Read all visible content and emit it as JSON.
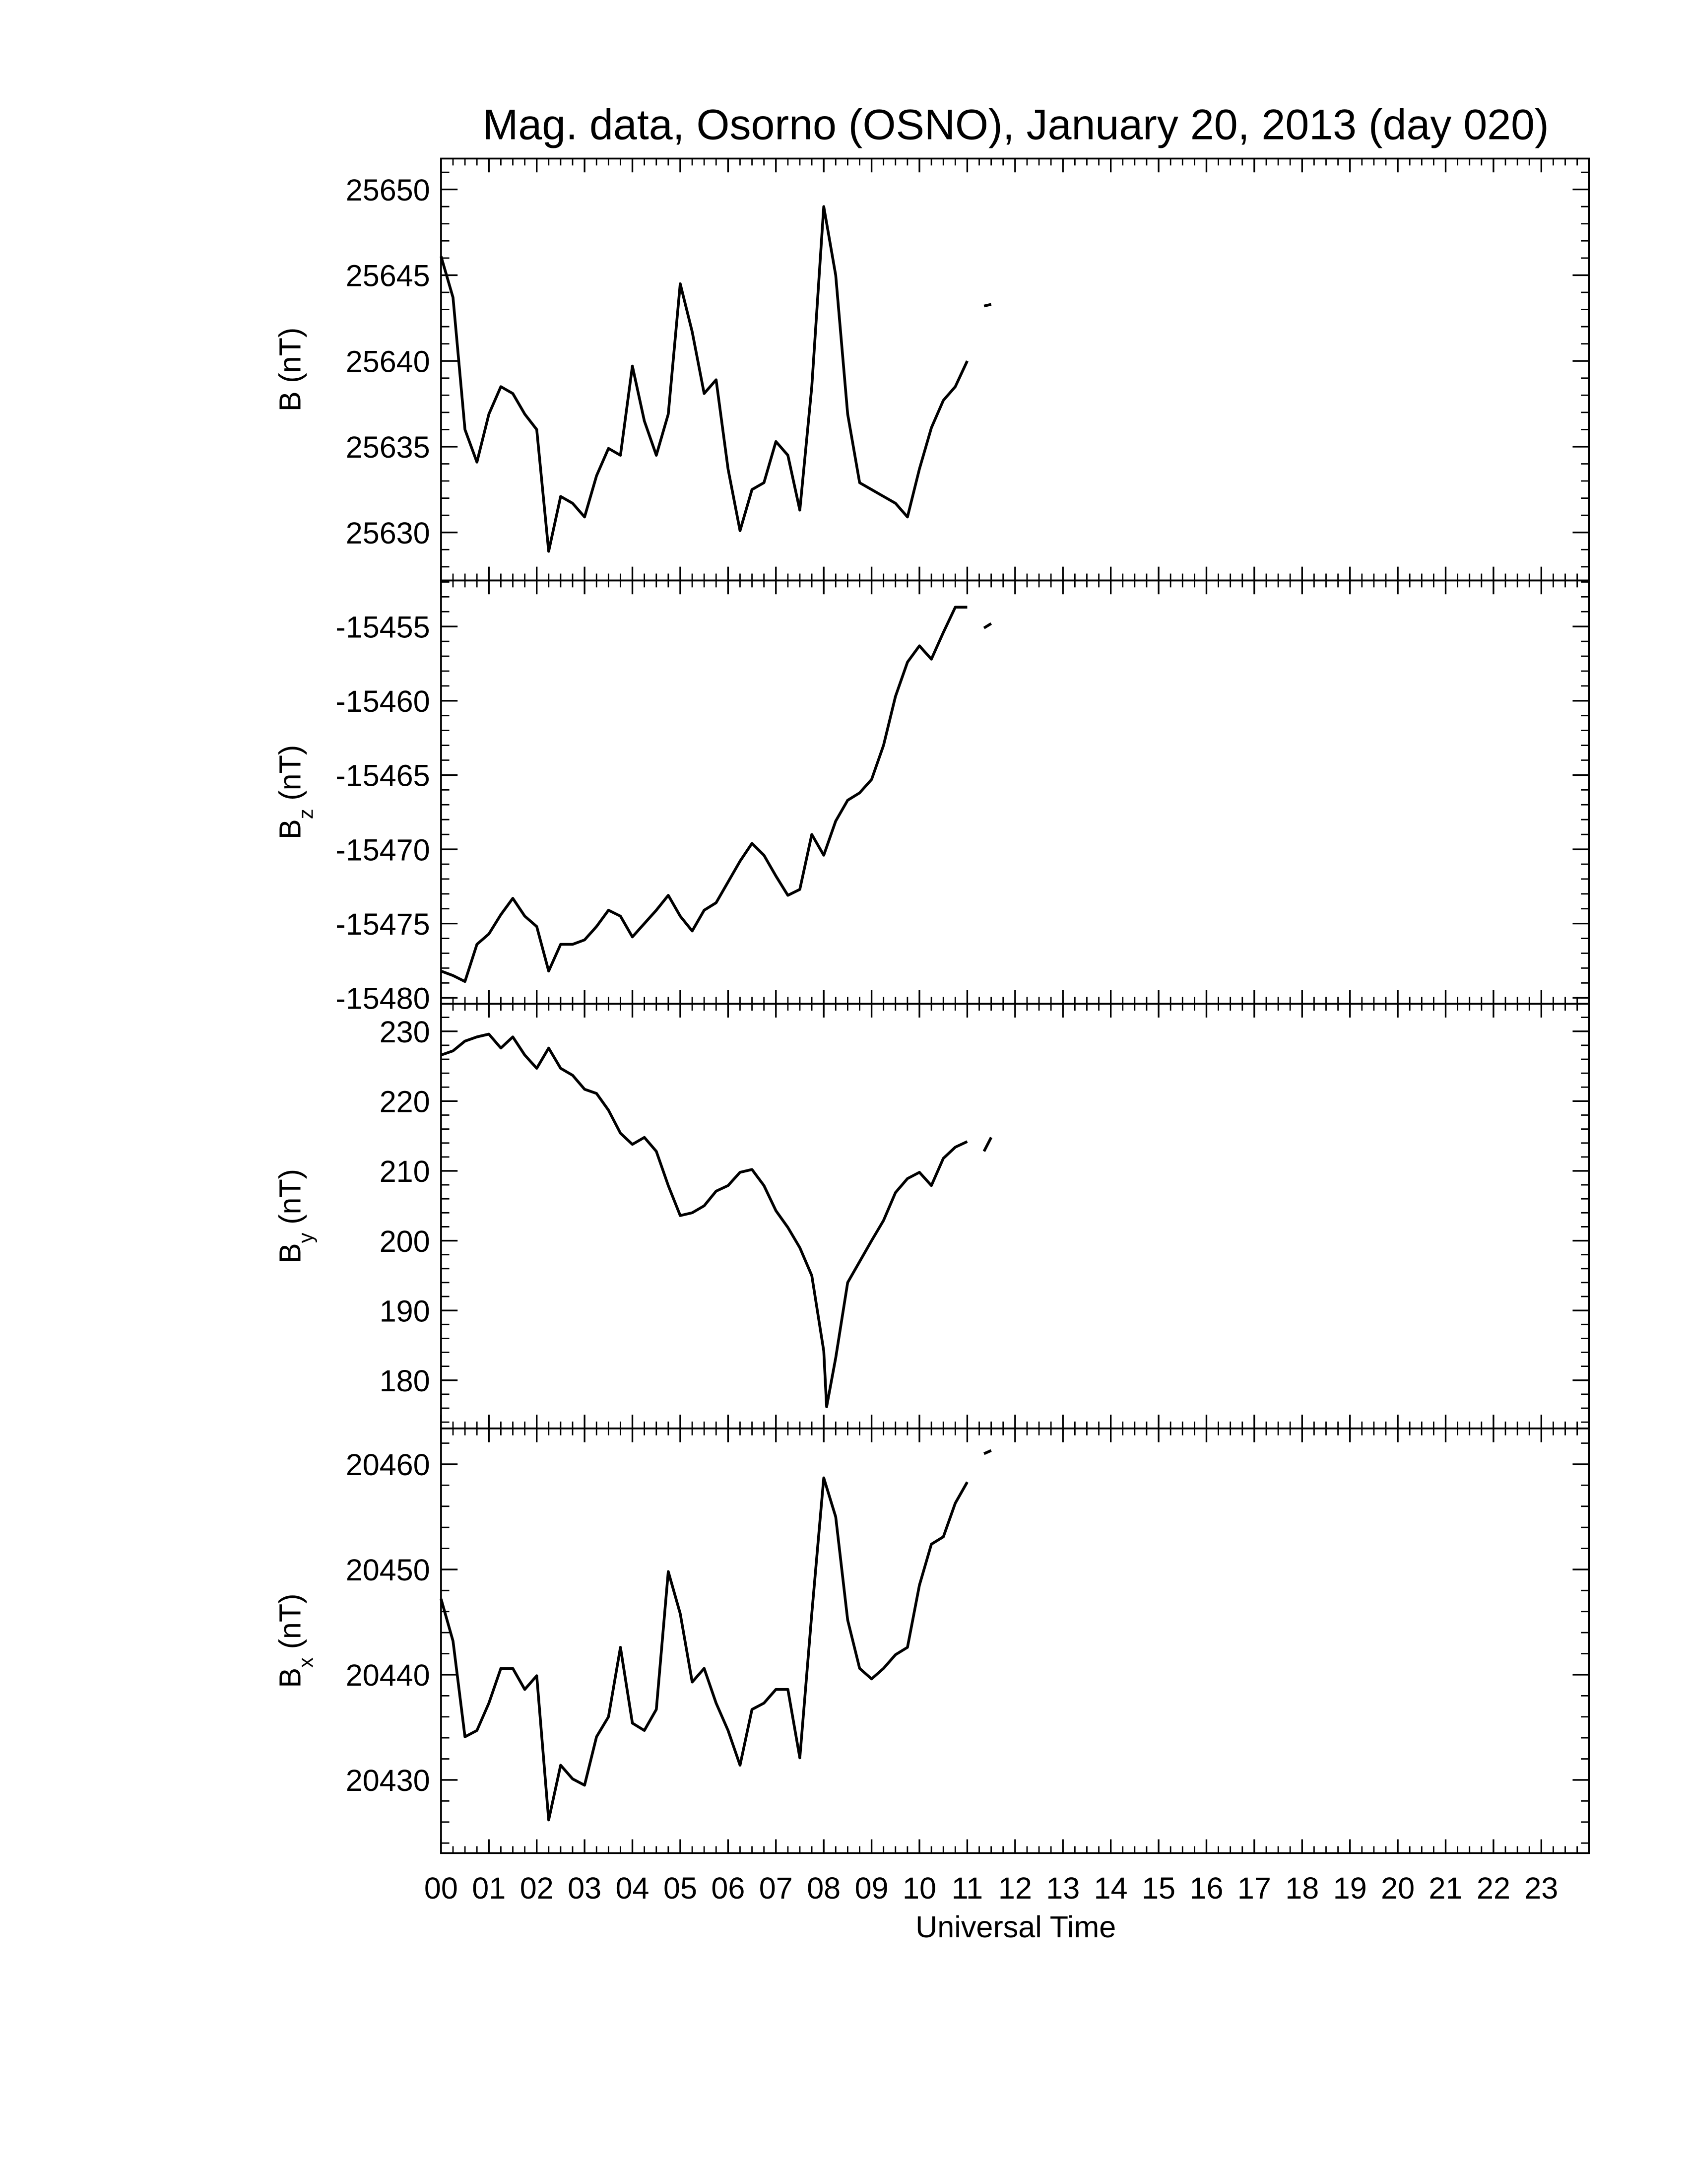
{
  "chart_data": [
    {
      "type": "line",
      "title": "Mag. data, Osorno (OSNO), January 20, 2013 (day 020)",
      "ylabel": "B",
      "ylabel_unit": "(nT)",
      "color": "#000000",
      "x": [
        0,
        0.25,
        0.5,
        0.75,
        1,
        1.25,
        1.5,
        1.75,
        2,
        2.25,
        2.5,
        2.75,
        3,
        3.25,
        3.5,
        3.75,
        4,
        4.25,
        4.5,
        4.75,
        5,
        5.25,
        5.5,
        5.75,
        6,
        6.25,
        6.5,
        6.75,
        7,
        7.25,
        7.5,
        7.75,
        8,
        8.25,
        8.5,
        8.75,
        9,
        9.25,
        9.5,
        9.75,
        10,
        10.25,
        10.5,
        10.75,
        11,
        11.2,
        11.35,
        11.5
      ],
      "values": [
        25646.1,
        25643.7,
        25636,
        25634.1,
        25636.9,
        25638.5,
        25638.1,
        25636.9,
        25636,
        25628.9,
        25632.1,
        25631.7,
        25630.9,
        25633.3,
        25634.9,
        25634.5,
        25639.7,
        25636.5,
        25634.5,
        25636.9,
        25644.5,
        25641.7,
        25638.1,
        25638.9,
        25633.7,
        25630.1,
        25632.5,
        25632.9,
        25635.3,
        25634.5,
        25631.3,
        25638.5,
        25649,
        25645,
        25636.9,
        25632.9,
        25632.5,
        25632.1,
        25631.7,
        25630.9,
        25633.7,
        25636.1,
        25637.7,
        25638.5,
        25640,
        null,
        25643.2,
        25643.3
      ],
      "xlim": [
        0,
        24
      ],
      "xticks": [
        {
          "value": 0,
          "label": "00"
        },
        {
          "value": 1,
          "label": "01"
        },
        {
          "value": 2,
          "label": "02"
        },
        {
          "value": 3,
          "label": "03"
        },
        {
          "value": 4,
          "label": "04"
        },
        {
          "value": 5,
          "label": "05"
        },
        {
          "value": 6,
          "label": "06"
        },
        {
          "value": 7,
          "label": "07"
        },
        {
          "value": 8,
          "label": "08"
        },
        {
          "value": 9,
          "label": "09"
        },
        {
          "value": 10,
          "label": "10"
        },
        {
          "value": 11,
          "label": "11"
        },
        {
          "value": 12,
          "label": "12"
        },
        {
          "value": 13,
          "label": "13"
        },
        {
          "value": 14,
          "label": "14"
        },
        {
          "value": 15,
          "label": "15"
        },
        {
          "value": 16,
          "label": "16"
        },
        {
          "value": 17,
          "label": "17"
        },
        {
          "value": 18,
          "label": "18"
        },
        {
          "value": 19,
          "label": "19"
        },
        {
          "value": 20,
          "label": "20"
        },
        {
          "value": 21,
          "label": "21"
        },
        {
          "value": 22,
          "label": "22"
        },
        {
          "value": 23,
          "label": "23"
        }
      ],
      "ylim": [
        25627.2,
        25651.8
      ],
      "yticks": [
        25630,
        25635,
        25640,
        25645,
        25650
      ]
    },
    {
      "type": "line",
      "ylabel": "B",
      "ylabel_sub": "z",
      "ylabel_unit": "(nT)",
      "color": "#000000",
      "x": [
        0,
        0.25,
        0.5,
        0.75,
        1,
        1.25,
        1.5,
        1.75,
        2,
        2.25,
        2.5,
        2.75,
        3,
        3.25,
        3.5,
        3.75,
        4,
        4.25,
        4.5,
        4.75,
        5,
        5.25,
        5.5,
        5.75,
        6,
        6.25,
        6.5,
        6.75,
        7,
        7.25,
        7.5,
        7.75,
        8,
        8.25,
        8.5,
        8.75,
        9,
        9.25,
        9.5,
        9.75,
        10,
        10.25,
        10.5,
        10.75,
        11,
        11.2,
        11.35,
        11.5
      ],
      "values": [
        -15478.2,
        -15478.5,
        -15478.9,
        -15476.4,
        -15475.7,
        -15474.4,
        -15473.3,
        -15474.5,
        -15475.2,
        -15478.2,
        -15476.4,
        -15476.4,
        -15476.1,
        -15475.2,
        -15474.1,
        -15474.5,
        -15475.9,
        -15475,
        -15474.1,
        -15473.1,
        -15474.5,
        -15475.5,
        -15474.1,
        -15473.6,
        -15472.2,
        -15470.8,
        -15469.6,
        -15470.4,
        -15471.8,
        -15473.1,
        -15472.7,
        -15469,
        -15470.4,
        -15468.1,
        -15466.7,
        -15466.2,
        -15465.3,
        -15463,
        -15459.7,
        -15457.4,
        -15456.3,
        -15457.2,
        -15455.4,
        -15453.7,
        -15453.7,
        null,
        -15455.1,
        -15454.8
      ],
      "xlim": [
        0,
        24
      ],
      "xticks": [
        0,
        1,
        2,
        3,
        4,
        5,
        6,
        7,
        8,
        9,
        10,
        11,
        12,
        13,
        14,
        15,
        16,
        17,
        18,
        19,
        20,
        21,
        22,
        23
      ],
      "ylim": [
        -15480.4,
        -15451.9
      ],
      "yticks": [
        -15480,
        -15475,
        -15470,
        -15465,
        -15460,
        -15455
      ]
    },
    {
      "type": "line",
      "ylabel": "B",
      "ylabel_sub": "y",
      "ylabel_unit": "(nT)",
      "color": "#000000",
      "x": [
        0,
        0.25,
        0.5,
        0.75,
        1,
        1.25,
        1.5,
        1.75,
        2,
        2.25,
        2.5,
        2.75,
        3,
        3.25,
        3.5,
        3.75,
        4,
        4.25,
        4.5,
        4.75,
        5,
        5.25,
        5.5,
        5.75,
        6,
        6.25,
        6.5,
        6.75,
        7,
        7.25,
        7.5,
        7.75,
        8,
        8.06,
        8.25,
        8.5,
        8.75,
        9,
        9.25,
        9.5,
        9.75,
        10,
        10.25,
        10.5,
        10.75,
        11,
        11.2,
        11.35,
        11.5
      ],
      "values": [
        226.6,
        227.2,
        228.6,
        229.2,
        229.6,
        227.6,
        229.2,
        226.6,
        224.7,
        227.6,
        224.7,
        223.7,
        221.7,
        221.1,
        218.7,
        215.4,
        213.8,
        214.8,
        212.8,
        207.9,
        203.6,
        204,
        205,
        207.1,
        207.9,
        209.8,
        210.2,
        207.9,
        204.3,
        201.9,
        199,
        195,
        184.2,
        176.2,
        183.2,
        194,
        197,
        200,
        202.9,
        206.9,
        208.9,
        209.8,
        207.9,
        211.8,
        213.4,
        214.2,
        null,
        212.8,
        214.8
      ],
      "xlim": [
        0,
        24
      ],
      "xticks": [
        0,
        1,
        2,
        3,
        4,
        5,
        6,
        7,
        8,
        9,
        10,
        11,
        12,
        13,
        14,
        15,
        16,
        17,
        18,
        19,
        20,
        21,
        22,
        23
      ],
      "ylim": [
        173.1,
        233.95
      ],
      "yticks": [
        180,
        190,
        200,
        210,
        220,
        230
      ]
    },
    {
      "type": "line",
      "ylabel": "B",
      "ylabel_sub": "x",
      "ylabel_unit": "(nT)",
      "xlabel": "Universal Time",
      "color": "#000000",
      "x": [
        0,
        0.25,
        0.5,
        0.75,
        1,
        1.25,
        1.5,
        1.75,
        2,
        2.25,
        2.5,
        2.75,
        3,
        3.25,
        3.5,
        3.75,
        4,
        4.25,
        4.5,
        4.75,
        5,
        5.25,
        5.5,
        5.75,
        6,
        6.25,
        6.5,
        6.75,
        7,
        7.25,
        7.5,
        7.75,
        8,
        8.25,
        8.5,
        8.75,
        9,
        9.25,
        9.5,
        9.75,
        10,
        10.25,
        10.5,
        10.75,
        11,
        11.2,
        11.35,
        11.5
      ],
      "values": [
        20447.2,
        20443.2,
        20434.1,
        20434.7,
        20437.3,
        20440.6,
        20440.6,
        20438.6,
        20439.9,
        20426.2,
        20431.4,
        20430.1,
        20429.5,
        20434.1,
        20436,
        20442.6,
        20435.4,
        20434.7,
        20436.7,
        20449.8,
        20445.8,
        20439.3,
        20440.6,
        20437.3,
        20434.7,
        20431.4,
        20436.7,
        20437.3,
        20438.6,
        20438.6,
        20432.1,
        20445.8,
        20458.7,
        20455,
        20445.2,
        20440.6,
        20439.6,
        20440.6,
        20441.9,
        20442.6,
        20448.5,
        20452.4,
        20453.1,
        20456.3,
        20458.3,
        null,
        20461,
        20461.3
      ],
      "xlim": [
        0,
        24
      ],
      "xticks": [
        {
          "value": 0,
          "label": "00"
        },
        {
          "value": 1,
          "label": "01"
        },
        {
          "value": 2,
          "label": "02"
        },
        {
          "value": 3,
          "label": "03"
        },
        {
          "value": 4,
          "label": "04"
        },
        {
          "value": 5,
          "label": "05"
        },
        {
          "value": 6,
          "label": "06"
        },
        {
          "value": 7,
          "label": "07"
        },
        {
          "value": 8,
          "label": "08"
        },
        {
          "value": 9,
          "label": "09"
        },
        {
          "value": 10,
          "label": "10"
        },
        {
          "value": 11,
          "label": "11"
        },
        {
          "value": 12,
          "label": "12"
        },
        {
          "value": 13,
          "label": "13"
        },
        {
          "value": 14,
          "label": "14"
        },
        {
          "value": 15,
          "label": "15"
        },
        {
          "value": 16,
          "label": "16"
        },
        {
          "value": 17,
          "label": "17"
        },
        {
          "value": 18,
          "label": "18"
        },
        {
          "value": 19,
          "label": "19"
        },
        {
          "value": 20,
          "label": "20"
        },
        {
          "value": 21,
          "label": "21"
        },
        {
          "value": 22,
          "label": "22"
        },
        {
          "value": 23,
          "label": "23"
        }
      ],
      "ylim": [
        20423.05,
        20463.4
      ],
      "yticks": [
        20430,
        20440,
        20450,
        20460
      ]
    }
  ]
}
